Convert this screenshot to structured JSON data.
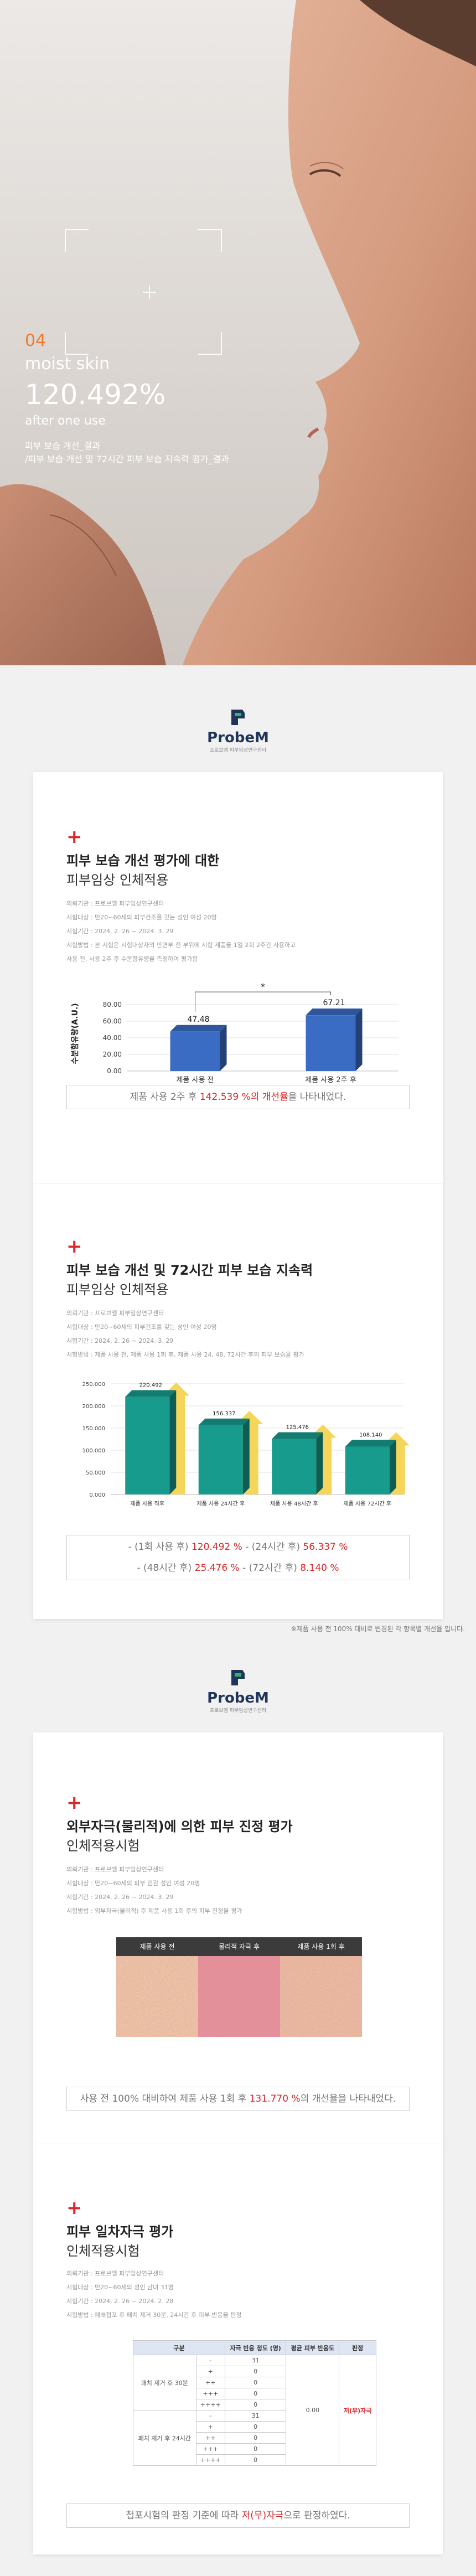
{
  "hero": {
    "number": "04",
    "heading": "moist skin",
    "percent": "120.492%",
    "subheading": "after one use",
    "captions": [
      "피부 보습 개선_결과",
      "/피부 보습 개선 및 72시간 피부 보습 지속력 평가_결과"
    ]
  },
  "brand": {
    "name": "ProbeM",
    "tagline": "프로브엠 피부임상연구센터"
  },
  "studies": [
    {
      "title": "피부 보습 개선 평가에 대한",
      "subtitle": "피부임상 인체적용",
      "meta": [
        "의뢰기관 : 프로브엠 피부임상연구센터",
        "시험대상 : 만20~60세의 피부건조를 갖는 성인 여성 20명",
        "시험기간 : 2024. 2. 26 ~ 2024. 3. 29",
        "시험방법 : 본 시험은 시험대상자의 안면부 전 부위에 시험 제품을 1일 2회 2주간 사용하고",
        "사용 전, 사용 2주 후 수분함유량을 측정하여 평가함"
      ],
      "result": {
        "before": "제품 사용 2주 후 ",
        "highlight": "142.539 %의 개선율",
        "after": "을 나타내었다."
      }
    },
    {
      "title": "피부 보습 개선 및 72시간 피부 보습 지속력",
      "subtitle": "피부임상 인체적용",
      "meta": [
        "의뢰기관 : 프로브엠 피부임상연구센터",
        "시험대상 : 만20~60세의 피부건조를 갖는 성인 여성 20명",
        "시험기간 : 2024. 2. 26 ~ 2024. 3. 29",
        "시험방법 : 제품 사용 전, 제품 사용 1회 후, 제품 사용 24, 48, 72시간 후의 피부 보습을 평가"
      ],
      "results": [
        [
          "- (1회 사용 후) ",
          "120.492 %",
          "  - (24시간 후) ",
          "56.337 %"
        ],
        [
          "- (48시간 후) ",
          "25.476 %",
          "  - (72시간 후) ",
          "8.140 %"
        ]
      ]
    },
    {
      "title": "외부자극(물리적)에 의한 피부 진정 평가",
      "subtitle": "인체적용시험",
      "meta": [
        "의뢰기관 : 프로브엠 피부임상연구센터",
        "시험대상 : 만20~60세의 피부 민감 성인 여성 20명",
        "시험기간 : 2024. 2. 26 ~ 2024. 3. 29",
        "시험방법 : 외부자극(물리적) 후 제품 사용 1회 후의 피부 진정을 평가"
      ],
      "images": [
        "제품 사용 전",
        "물리적 자극 후",
        "제품 사용 1회 후"
      ],
      "result": {
        "before": "사용 전 100% 대비하여 제품 사용 1회 후 ",
        "highlight": "131.770 %",
        "after": "의 개선율을 나타내었다."
      }
    },
    {
      "title": "피부 일차자극 평가",
      "subtitle": "인체적용시험",
      "meta": [
        "의뢰기관 : 프로브엠 피부임상연구센터",
        "시험대상 : 만20~60세의 성인 남녀 31명",
        "시험기간 : 2024. 2. 26 ~ 2024. 2. 28",
        "시험방법 : 폐쇄첩포 후 패치 제거 30분, 24시간 후 피부 반응을 판정"
      ],
      "table": {
        "header": [
          "구분",
          "자극 반응 정도 (명)",
          "평균 피부 반응도",
          "판정"
        ],
        "groups": [
          {
            "label": "패치 제거 후 30분",
            "rows": [
              [
                "-",
                "31"
              ],
              [
                "+",
                "0"
              ],
              [
                "++",
                "0"
              ],
              [
                "+++",
                "0"
              ],
              [
                "++++",
                "0"
              ]
            ]
          },
          {
            "label": "패치 제거 후 24시간",
            "rows": [
              [
                "-",
                "31"
              ],
              [
                "+",
                "0"
              ],
              [
                "++",
                "0"
              ],
              [
                "+++",
                "0"
              ],
              [
                "++++",
                "0"
              ]
            ]
          }
        ],
        "average": "0.00",
        "verdict": "저(무)자극"
      },
      "result": {
        "before": "첩포시험의 판정 기준에 따라 ",
        "highlight": "저(무)자극",
        "after": "으로 판정하였다."
      }
    }
  ],
  "footnote": "※제품 사용 전 100% 대비로 변경된 각 항목별 개선율 입니다.",
  "chart_data": [
    {
      "type": "bar",
      "y_label": "수분함유량(A.U.)",
      "categories": [
        "제품 사용 전",
        "제품 사용 2주 후"
      ],
      "values": [
        47.48,
        67.21
      ],
      "color": "#3a6cc4",
      "annotation": "*",
      "ylim": [
        0,
        90
      ],
      "yticks": [
        {
          "value": 0,
          "label": "0.00"
        },
        {
          "value": 20,
          "label": "20.00"
        },
        {
          "value": 40,
          "label": "40.00"
        },
        {
          "value": 60,
          "label": "60.00"
        },
        {
          "value": 80,
          "label": "80.00"
        }
      ],
      "grid": true
    },
    {
      "type": "bar",
      "categories": [
        "제품 사용 직후",
        "제품 사용 24시간 후",
        "제품 사용 48시간 후",
        "제품 사용 72시간 후"
      ],
      "values": [
        220.492,
        156.337,
        125.476,
        108.14
      ],
      "value_labels": [
        "220.492",
        "156.337",
        "125.476",
        "108.140"
      ],
      "color": "#169b8c",
      "accent_color": "#f5d55a",
      "ylim": [
        0,
        250
      ],
      "yticks": [
        {
          "value": 0,
          "label": "0.000"
        },
        {
          "value": 50,
          "label": "50.000"
        },
        {
          "value": 100,
          "label": "100.000"
        },
        {
          "value": 150,
          "label": "150.000"
        },
        {
          "value": 200,
          "label": "200.000"
        },
        {
          "value": 250,
          "label": "250.000"
        }
      ],
      "grid": true
    }
  ]
}
